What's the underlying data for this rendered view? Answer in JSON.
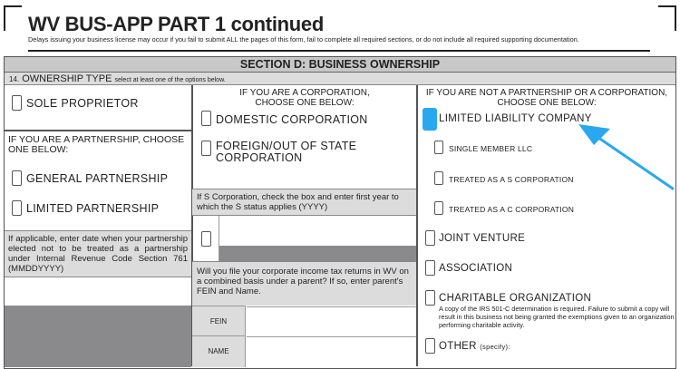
{
  "header": {
    "title": "WV BUS-APP PART 1 continued",
    "subtitle": "Delays issuing your business license may occur if you fail to submit ALL the pages of this form, fail to complete all required sections, or do not include all required supporting documentation."
  },
  "section": {
    "title": "SECTION D: BUSINESS OWNERSHIP",
    "question_number": "14.",
    "question": "OWNERSHIP TYPE",
    "instruction": "select at least one of the options below."
  },
  "left": {
    "sole": "SOLE PROPRIETOR",
    "partnership_header": "IF YOU ARE A  PARTNERSHIP, CHOOSE ONE BELOW:",
    "general": "GENERAL PARTNERSHIP",
    "limited": "LIMITED PARTNERSHIP",
    "election_note": "If applicable, enter date when your partnership elected not to be treated as a partnership under Internal Revenue Code Section 761 (MMDDYYYY)"
  },
  "middle": {
    "corp_header_1": "IF YOU ARE A CORPORATION,",
    "corp_header_2": "CHOOSE ONE BELOW:",
    "domestic": "DOMESTIC CORPORATION",
    "foreign_1": "FOREIGN/OUT OF STATE",
    "foreign_2": "CORPORATION",
    "s_corp_note": "If S Corporation, check the box and enter first year to which the S status applies (YYYY)",
    "combined_note": "Will you file your corporate income tax returns in WV on a combined basis under a parent? If so, enter parent's FEIN and Name.",
    "fein": "FEIN",
    "name": "NAME"
  },
  "right": {
    "header_1": "IF YOU ARE NOT A PARTNERSHIP OR A CORPORATION,",
    "header_2": "CHOOSE ONE BELOW:",
    "llc": "LIMITED LIABILITY COMPANY",
    "single": "SINGLE MEMBER LLC",
    "s": "TREATED AS A S CORPORATION",
    "c": "TREATED AS A C CORPORATION",
    "joint": "JOINT VENTURE",
    "association": "ASSOCIATION",
    "charitable": "CHARITABLE ORGANIZATION",
    "charitable_note": "A copy of the IRS 501-C determination is required. Failure to submit a copy will result in this business not being granted the exemptions given to an organization performing charitable activity.",
    "other": "OTHER",
    "other_hint": "(specify):"
  },
  "colors": {
    "highlight": "#29a8f0",
    "section_bar": "#c8c8c8"
  }
}
